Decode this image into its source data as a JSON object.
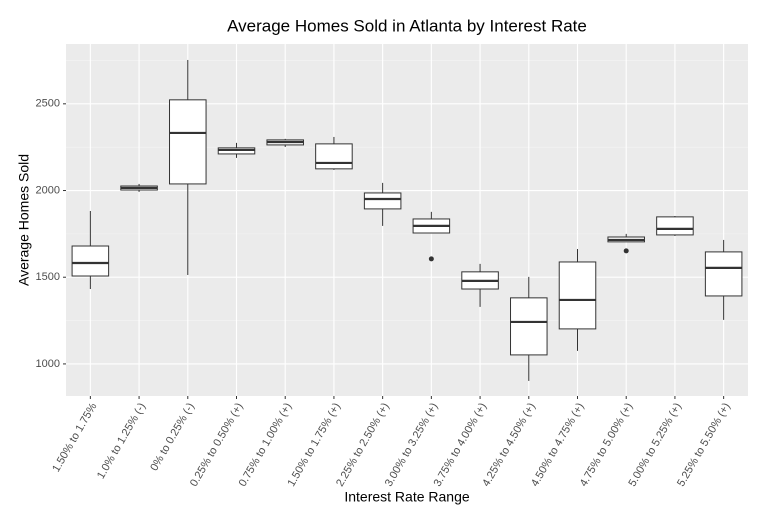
{
  "chart_data": {
    "type": "boxplot",
    "title": "Average Homes Sold in Atlanta by Interest Rate",
    "x_label": "Interest Rate Range",
    "y_label": "Average Homes Sold",
    "categories": [
      "1.50% to 1.75%",
      "1.0% to 1.25% (-)",
      "0% to 0.25% (-)",
      "0.25% to 0.50% (+)",
      "0.75% to 1.00% (+)",
      "1.50% to 1.75% (+)",
      "2.25% to 2.50% (+)",
      "3.00% to 3.25% (+)",
      "3.75% to 4.00% (+)",
      "4.25% to 4.50% (+)",
      "4.50% to 4.75% (+)",
      "4.75% to 5.00% (+)",
      "5.00% to 5.25% (+)",
      "5.25% to 5.50% (+)"
    ],
    "low": [
      1432,
      1992,
      1513,
      2188,
      2251,
      2119,
      1796,
      1755,
      1329,
      902,
      1075,
      1704,
      1738,
      1254
    ],
    "q1": [
      1507,
      2003,
      2038,
      2211,
      2263,
      2125,
      1894,
      1755,
      1432,
      1052,
      1202,
      1704,
      1744,
      1392
    ],
    "median": [
      1582,
      2015,
      2332,
      2234,
      2280,
      2159,
      1951,
      1796,
      1479,
      1242,
      1369,
      1715,
      1779,
      1554
    ],
    "q3": [
      1680,
      2026,
      2523,
      2246,
      2292,
      2269,
      1986,
      1836,
      1531,
      1381,
      1588,
      1732,
      1848,
      1646
    ],
    "high": [
      1882,
      2038,
      2753,
      2275,
      2298,
      2309,
      2044,
      1877,
      1577,
      1502,
      1663,
      1750,
      1853,
      1715
    ],
    "outliers": [
      [],
      [],
      [],
      [],
      [],
      [],
      [],
      [
        1606
      ],
      [],
      [],
      [],
      [
        1652
      ],
      [],
      []
    ],
    "ylim": [
      815,
      2845
    ],
    "yticks": [
      1000,
      1500,
      2000,
      2500
    ],
    "yminor": [
      1250,
      1750,
      2250,
      2750
    ],
    "grid": true
  }
}
